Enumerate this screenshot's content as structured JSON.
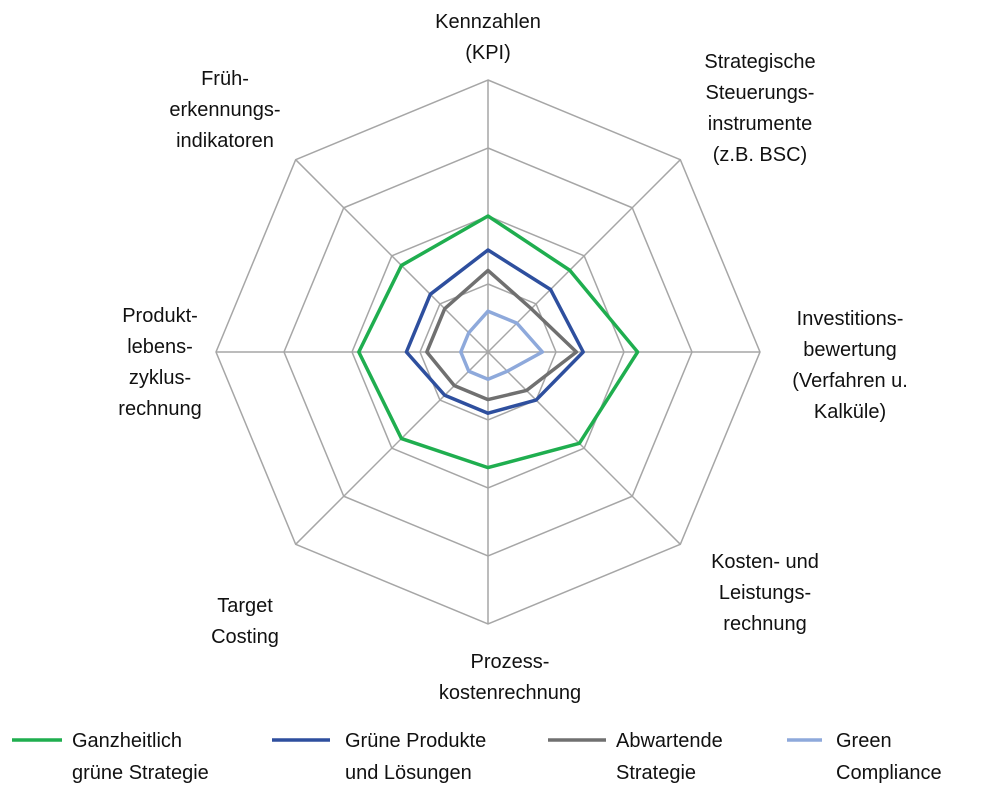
{
  "chart_data": {
    "type": "radar",
    "categories": [
      "Kennzahlen\n(KPI)",
      "Strategische\nSteuerungs-\ninstrumente\n(z.B. BSC)",
      "Investitions-\nbewertung\n(Verfahren u.\nKalküle)",
      "Kosten- und\nLeistungs-\nrechnung",
      "Prozess-\nkostenrechnung",
      "Target\nCosting",
      "Produkt-\nlebens-\nzyklus-\nrechnung",
      "Früh-\nerkennungs-\nindikatoren"
    ],
    "series": [
      {
        "name": "Ganzheitlich\ngrüne Strategie",
        "color": "#1fae4f",
        "values": [
          2.0,
          1.7,
          2.2,
          1.9,
          1.7,
          1.8,
          1.9,
          1.8
        ]
      },
      {
        "name": "Grüne Produkte\nund Lösungen",
        "color": "#2e4f9e",
        "values": [
          1.5,
          1.3,
          1.4,
          1.0,
          0.9,
          0.9,
          1.2,
          1.2
        ]
      },
      {
        "name": "Abwartende\nStrategie",
        "color": "#707070",
        "values": [
          1.2,
          0.9,
          1.3,
          0.8,
          0.7,
          0.7,
          0.9,
          0.9
        ]
      },
      {
        "name": "Green\nCompliance",
        "color": "#8ea9db",
        "values": [
          0.6,
          0.6,
          0.8,
          0.4,
          0.4,
          0.4,
          0.4,
          0.4
        ]
      }
    ],
    "ylim": [
      0,
      4
    ],
    "yticks": [
      0,
      1,
      2,
      3,
      4
    ],
    "grid": true
  }
}
